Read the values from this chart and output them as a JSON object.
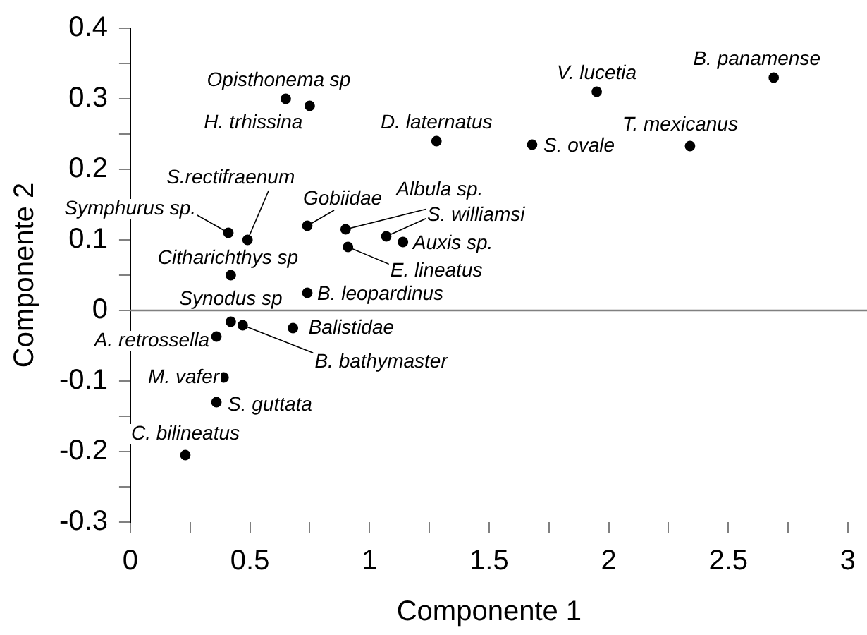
{
  "chart_data": {
    "type": "scatter",
    "xlabel": "Componente 1",
    "ylabel": "Componente 2",
    "xlim": [
      0,
      3
    ],
    "ylim": [
      -0.3,
      0.4
    ],
    "xticks": [
      0,
      {
        "value": 0.25,
        "label": null
      },
      0.5,
      {
        "value": 0.75,
        "label": null
      },
      1,
      {
        "value": 1.25,
        "label": null
      },
      1.5,
      {
        "value": 1.75,
        "label": null
      },
      2,
      {
        "value": 2.25,
        "label": null
      },
      2.5,
      {
        "value": 2.75,
        "label": null
      },
      3
    ],
    "yticks": [
      -0.3,
      {
        "value": -0.25,
        "label": null
      },
      -0.2,
      {
        "value": -0.15,
        "label": null
      },
      -0.1,
      {
        "value": -0.05,
        "label": null
      },
      0,
      {
        "value": 0.05,
        "label": null
      },
      0.1,
      {
        "value": 0.15,
        "label": null
      },
      0.2,
      {
        "value": 0.25,
        "label": null
      },
      0.3,
      {
        "value": 0.35,
        "label": null
      },
      0.4
    ],
    "grid": false,
    "legend": false,
    "marker": "circle",
    "ref_lines": [
      {
        "axis": "y",
        "value": 0,
        "color": "#808080"
      }
    ],
    "series": [
      {
        "name": "Opisthonema sp",
        "color": "#000000",
        "x": [
          0.65
        ],
        "values": [
          0.3
        ]
      },
      {
        "name": "H. trhissina",
        "color": "#000000",
        "x": [
          0.75
        ],
        "values": [
          0.29
        ]
      },
      {
        "name": "D. laternatus",
        "color": "#000000",
        "x": [
          1.28
        ],
        "values": [
          0.24
        ]
      },
      {
        "name": "S. ovale",
        "color": "#000000",
        "x": [
          1.68
        ],
        "values": [
          0.235
        ]
      },
      {
        "name": "V. lucetia",
        "color": "#000000",
        "x": [
          1.95
        ],
        "values": [
          0.31
        ]
      },
      {
        "name": "T. mexicanus",
        "color": "#000000",
        "x": [
          2.34
        ],
        "values": [
          0.233
        ]
      },
      {
        "name": "B. panamense",
        "color": "#000000",
        "x": [
          2.69
        ],
        "values": [
          0.33
        ]
      },
      {
        "name": "Symphurus sp.",
        "color": "#000000",
        "x": [
          0.41
        ],
        "values": [
          0.11
        ]
      },
      {
        "name": "S.rectifraenum",
        "color": "#000000",
        "x": [
          0.49
        ],
        "values": [
          0.1
        ]
      },
      {
        "name": "Gobiidae",
        "color": "#000000",
        "x": [
          0.74
        ],
        "values": [
          0.12
        ]
      },
      {
        "name": "Albula sp.",
        "color": "#000000",
        "x": [
          0.9
        ],
        "values": [
          0.115
        ]
      },
      {
        "name": "S. williamsi",
        "color": "#000000",
        "x": [
          1.07
        ],
        "values": [
          0.105
        ]
      },
      {
        "name": "Auxis sp.",
        "color": "#000000",
        "x": [
          1.14
        ],
        "values": [
          0.097
        ]
      },
      {
        "name": "E. lineatus",
        "color": "#000000",
        "x": [
          0.91
        ],
        "values": [
          0.09
        ]
      },
      {
        "name": "Citharichthys sp",
        "color": "#000000",
        "x": [
          0.42
        ],
        "values": [
          0.05
        ]
      },
      {
        "name": "B. leopardinus",
        "color": "#000000",
        "x": [
          0.74
        ],
        "values": [
          0.025
        ]
      },
      {
        "name": "Synodus sp",
        "color": "#000000",
        "x": [
          0.42
        ],
        "values": [
          -0.016
        ]
      },
      {
        "name": "B. bathymaster",
        "color": "#000000",
        "x": [
          0.47
        ],
        "values": [
          -0.021
        ]
      },
      {
        "name": "Balistidae",
        "color": "#000000",
        "x": [
          0.68
        ],
        "values": [
          -0.025
        ]
      },
      {
        "name": "A. retrossella",
        "color": "#000000",
        "x": [
          0.36
        ],
        "values": [
          -0.037
        ]
      },
      {
        "name": "M. vafer",
        "color": "#000000",
        "x": [
          0.39
        ],
        "values": [
          -0.095
        ]
      },
      {
        "name": "S. guttata",
        "color": "#000000",
        "x": [
          0.36
        ],
        "values": [
          -0.13
        ]
      },
      {
        "name": "C. bilineatus",
        "color": "#000000",
        "x": [
          0.23
        ],
        "values": [
          -0.205
        ]
      }
    ]
  }
}
